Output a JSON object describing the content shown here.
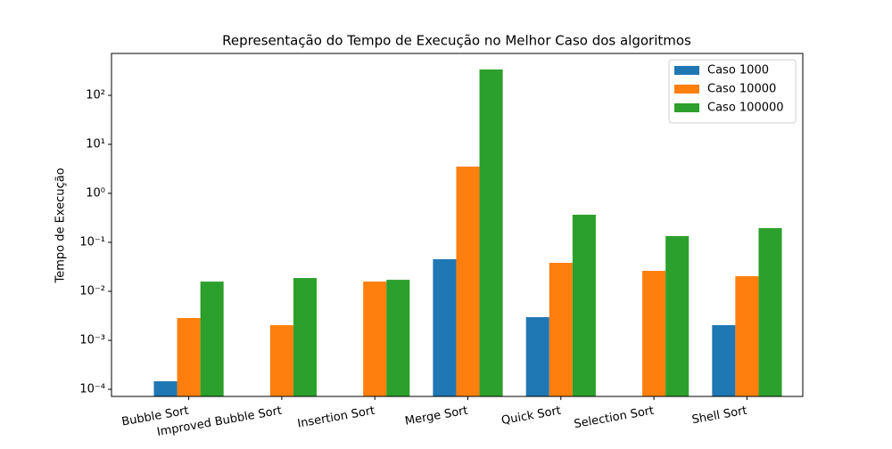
{
  "chart_data": {
    "type": "bar",
    "title": "Representação do Tempo de Execução no Melhor Caso dos algoritmos",
    "ylabel": "Tempo de Execução",
    "categories": [
      "Bubble Sort",
      "Improved Bubble Sort",
      "Insertion Sort",
      "Merge Sort",
      "Quick Sort",
      "Selection Sort",
      "Shell Sort"
    ],
    "series": [
      {
        "name": "Caso 1000",
        "color": "#1f77b4",
        "values": [
          0.000146,
          null,
          null,
          0.0452,
          0.00297,
          null,
          0.00204
        ]
      },
      {
        "name": "Caso 10000",
        "color": "#ff7f0e",
        "values": [
          0.00285,
          0.00204,
          0.0158,
          3.51,
          0.0382,
          0.0262,
          0.0204
        ]
      },
      {
        "name": "Caso 100000",
        "color": "#2ca02c",
        "values": [
          0.0158,
          0.0187,
          0.0172,
          337,
          0.366,
          0.134,
          0.195
        ]
      }
    ],
    "log_scale": true,
    "ylim": [
      7.16e-05,
      716
    ],
    "yticks": [
      {
        "value": 0.0001,
        "label": "10⁻⁴"
      },
      {
        "value": 0.001,
        "label": "10⁻³"
      },
      {
        "value": 0.01,
        "label": "10⁻²"
      },
      {
        "value": 0.1,
        "label": "10⁻¹"
      },
      {
        "value": 1,
        "label": "10⁰"
      },
      {
        "value": 10,
        "label": "10¹"
      },
      {
        "value": 100,
        "label": "10²"
      }
    ],
    "legend": "upper right",
    "grid": false
  }
}
